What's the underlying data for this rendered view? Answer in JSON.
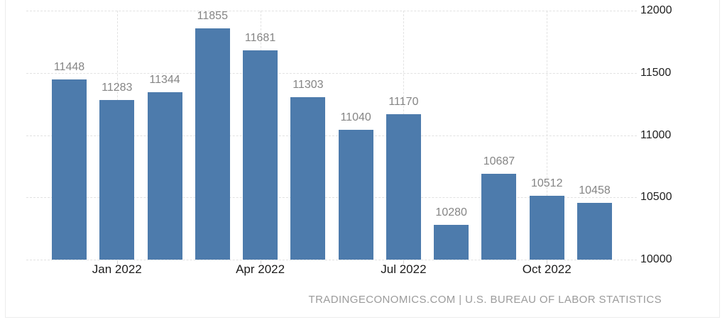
{
  "chart_data": {
    "type": "bar",
    "title": "",
    "xlabel": "",
    "ylabel": "",
    "values": [
      11448,
      11283,
      11344,
      11855,
      11681,
      11303,
      11040,
      11170,
      10280,
      10687,
      10512,
      10458
    ],
    "data_labels": [
      "11448",
      "11283",
      "11344",
      "11855",
      "11681",
      "11303",
      "11040",
      "11170",
      "10280",
      "10687",
      "10512",
      "10458"
    ],
    "x_ticks": [
      {
        "label": "Jan 2022",
        "bar_index": 1
      },
      {
        "label": "Apr 2022",
        "bar_index": 4
      },
      {
        "label": "Jul 2022",
        "bar_index": 7
      },
      {
        "label": "Oct 2022",
        "bar_index": 10
      }
    ],
    "y_ticks": [
      12000,
      11500,
      11000,
      10500,
      10000
    ],
    "ylim": [
      10000,
      12000
    ],
    "legend_position": "none",
    "grid": "dashed-horizontal-and-vertical",
    "bar_color": "#4d7bac"
  },
  "colors": {
    "bar": "#4d7bac",
    "gridline": "#e2e2e2",
    "frame_border": "#ececec",
    "value_label": "#858585",
    "axis_label": "#1c1c1c",
    "attribution": "#9b9b9b"
  },
  "attribution": "TRADINGECONOMICS.COM | U.S. BUREAU OF LABOR STATISTICS"
}
